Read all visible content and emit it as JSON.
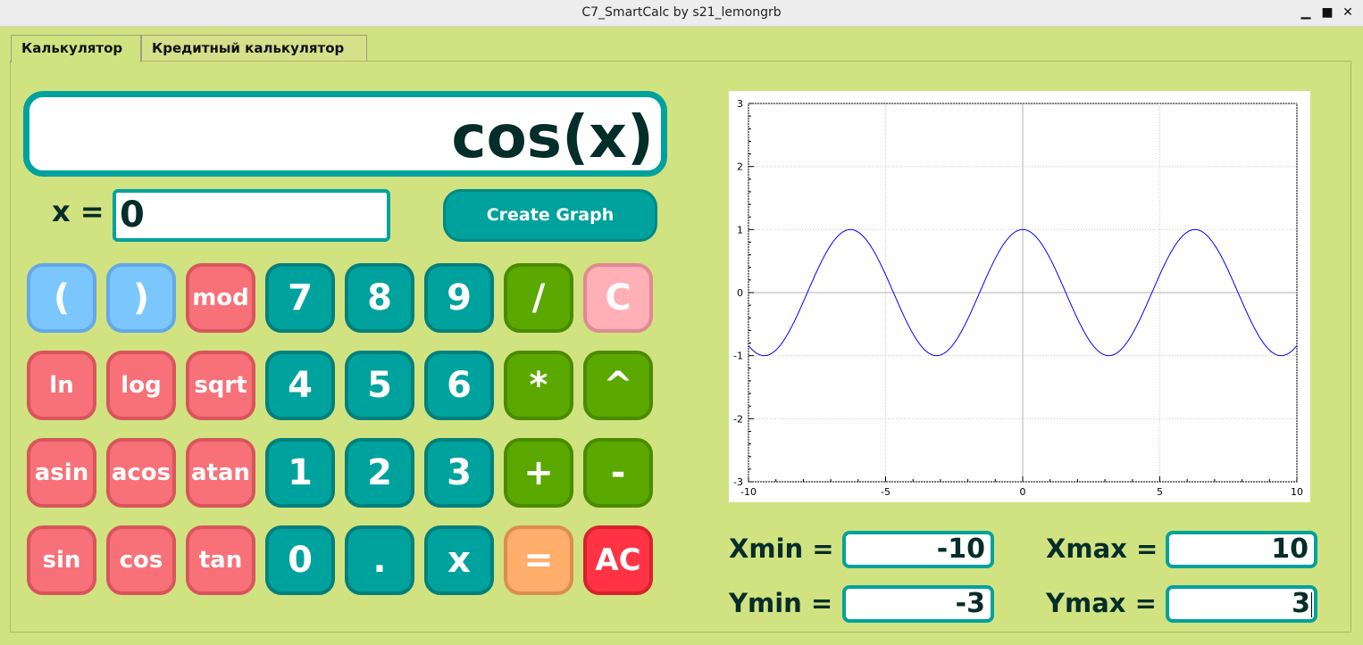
{
  "window": {
    "title": "C7_SmartCalc by s21_lemongrb",
    "minimize": "▁",
    "maximize": "■",
    "close": "✕"
  },
  "tabs": [
    {
      "label": "Калькулятор",
      "active": true
    },
    {
      "label": "Кредитный калькулятор",
      "active": false
    }
  ],
  "display": {
    "expression": "cos(x)"
  },
  "x_input": {
    "label": "x =",
    "value": "0"
  },
  "create_graph": {
    "label": "Create Graph"
  },
  "keypad": [
    [
      "(",
      ")",
      "mod",
      "7",
      "8",
      "9",
      "/",
      "C"
    ],
    [
      "ln",
      "log",
      "sqrt",
      "4",
      "5",
      "6",
      "*",
      "^"
    ],
    [
      "asin",
      "acos",
      "atan",
      "1",
      "2",
      "3",
      "+",
      "-"
    ],
    [
      "sin",
      "cos",
      "tan",
      "0",
      ".",
      "x",
      "=",
      "AC"
    ]
  ],
  "range": {
    "xmin_label": "Xmin =",
    "xmin": "-10",
    "xmax_label": "Xmax =",
    "xmax": "10",
    "ymin_label": "Ymin =",
    "ymin": "-3",
    "ymax_label": "Ymax =",
    "ymax": "3"
  },
  "colors": {
    "accent": "#00a29d",
    "background": "#d1e280",
    "plot_line": "#0000ff"
  },
  "chart_data": {
    "type": "line",
    "function": "cos(x)",
    "xlim": [
      -10,
      10
    ],
    "ylim": [
      -3,
      3
    ],
    "xticks": [
      "-10",
      "-5",
      "0",
      "5",
      "10"
    ],
    "yticks": [
      "3",
      "2",
      "1",
      "0",
      "-1",
      "-2",
      "-3"
    ],
    "grid": true,
    "series": [
      {
        "x": [
          -10,
          -9,
          -8,
          -7,
          -6,
          -5,
          -4,
          -3,
          -2,
          -1,
          0,
          1,
          2,
          3,
          4,
          5,
          6,
          7,
          8,
          9,
          10
        ],
        "y": [
          -0.84,
          -0.91,
          -0.15,
          0.75,
          0.96,
          0.28,
          -0.65,
          -0.99,
          -0.42,
          0.54,
          1,
          0.54,
          -0.42,
          -0.99,
          -0.65,
          0.28,
          0.96,
          0.75,
          -0.15,
          -0.91,
          -0.84
        ]
      }
    ]
  }
}
